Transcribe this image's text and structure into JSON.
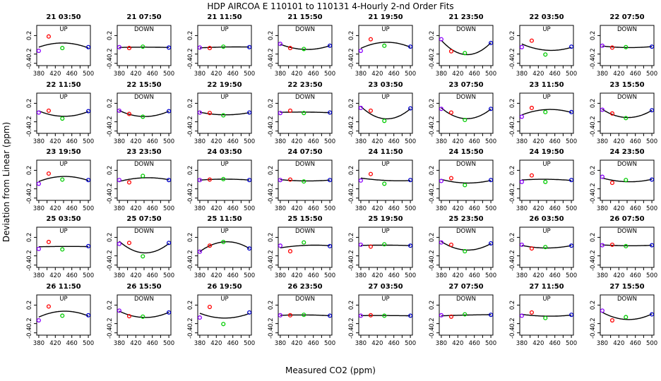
{
  "chart_data": {
    "type": "scatter",
    "title": "HDP   AIRCOA E   110101 to 110131   4-Hourly 2-nd Order Fits",
    "xlabel": "Measured CO2 (ppm)",
    "ylabel": "Deviation from Linear (ppm)",
    "xlim": [
      375,
      505
    ],
    "ylim": [
      -0.45,
      0.42
    ],
    "xticks": [
      380,
      420,
      460,
      500
    ],
    "xticks_minor": [
      400,
      440,
      480
    ],
    "yticks": [
      -0.4,
      -0.2,
      0.2
    ],
    "colors": {
      "s1": "#8b00ff",
      "s2": "#ff0000",
      "s3": "#00cc00",
      "s4": "#0000cc",
      "curve": "#000000"
    },
    "series_x": [
      380,
      404,
      437,
      500
    ],
    "panels": [
      {
        "title": "21 03:50",
        "direction": "UP",
        "y": [
          -0.13,
          0.18,
          -0.07,
          -0.05
        ]
      },
      {
        "title": "21 07:50",
        "direction": "DOWN",
        "y": [
          -0.05,
          -0.07,
          -0.04,
          -0.06
        ]
      },
      {
        "title": "21 11:50",
        "direction": "UP",
        "y": [
          -0.06,
          -0.07,
          -0.04,
          -0.05
        ]
      },
      {
        "title": "21 15:50",
        "direction": "DOWN",
        "y": [
          0.02,
          -0.07,
          -0.09,
          -0.02
        ]
      },
      {
        "title": "21 19:50",
        "direction": "UP",
        "y": [
          -0.13,
          0.12,
          -0.02,
          -0.04
        ]
      },
      {
        "title": "21 23:50",
        "direction": "DOWN",
        "y": [
          0.12,
          -0.14,
          -0.18,
          0.04
        ]
      },
      {
        "title": "22 03:50",
        "direction": "UP",
        "y": [
          -0.05,
          0.09,
          -0.21,
          -0.04
        ]
      },
      {
        "title": "22 07:50",
        "direction": "DOWN",
        "y": [
          -0.02,
          -0.06,
          -0.05,
          -0.04
        ]
      },
      {
        "title": "22 11:50",
        "direction": "UP",
        "y": [
          0.0,
          0.04,
          -0.13,
          0.03
        ]
      },
      {
        "title": "22 15:50",
        "direction": "DOWN",
        "y": [
          0.04,
          -0.03,
          -0.09,
          0.03
        ]
      },
      {
        "title": "22 19:50",
        "direction": "UP",
        "y": [
          0.0,
          -0.01,
          -0.06,
          0.0
        ]
      },
      {
        "title": "22 23:50",
        "direction": "DOWN",
        "y": [
          -0.01,
          0.04,
          -0.01,
          0.0
        ]
      },
      {
        "title": "23 03:50",
        "direction": "UP",
        "y": [
          0.1,
          0.04,
          -0.18,
          0.09
        ]
      },
      {
        "title": "23 07:50",
        "direction": "DOWN",
        "y": [
          0.08,
          0.0,
          -0.16,
          0.08
        ]
      },
      {
        "title": "23 11:50",
        "direction": "UP",
        "y": [
          -0.09,
          0.1,
          0.01,
          0.01
        ]
      },
      {
        "title": "23 15:50",
        "direction": "DOWN",
        "y": [
          0.06,
          -0.02,
          -0.12,
          0.05
        ]
      },
      {
        "title": "23 19:50",
        "direction": "UP",
        "y": [
          -0.09,
          0.13,
          0.0,
          -0.01
        ]
      },
      {
        "title": "23 23:50",
        "direction": "DOWN",
        "y": [
          -0.01,
          -0.06,
          0.08,
          -0.01
        ]
      },
      {
        "title": "24 03:50",
        "direction": "UP",
        "y": [
          -0.01,
          0.0,
          0.01,
          -0.01
        ]
      },
      {
        "title": "24 07:50",
        "direction": "DOWN",
        "y": [
          -0.01,
          0.0,
          -0.04,
          -0.01
        ]
      },
      {
        "title": "24 11:50",
        "direction": "UP",
        "y": [
          -0.02,
          0.12,
          -0.09,
          -0.01
        ]
      },
      {
        "title": "24 15:50",
        "direction": "DOWN",
        "y": [
          -0.03,
          0.03,
          -0.12,
          -0.01
        ]
      },
      {
        "title": "24 19:50",
        "direction": "UP",
        "y": [
          -0.05,
          0.09,
          -0.05,
          -0.01
        ]
      },
      {
        "title": "24 23:50",
        "direction": "DOWN",
        "y": [
          0.06,
          -0.07,
          -0.01,
          0.0
        ]
      },
      {
        "title": "25 03:50",
        "direction": "UP",
        "y": [
          -0.05,
          0.1,
          -0.06,
          0.01
        ]
      },
      {
        "title": "25 07:50",
        "direction": "DOWN",
        "y": [
          0.06,
          0.08,
          -0.21,
          0.08
        ]
      },
      {
        "title": "25 11:50",
        "direction": "UP",
        "y": [
          -0.11,
          0.02,
          0.1,
          -0.04
        ]
      },
      {
        "title": "25 15:50",
        "direction": "DOWN",
        "y": [
          0.02,
          -0.1,
          0.09,
          0.01
        ]
      },
      {
        "title": "25 19:50",
        "direction": "UP",
        "y": [
          0.04,
          0.0,
          0.05,
          0.02
        ]
      },
      {
        "title": "25 23:50",
        "direction": "DOWN",
        "y": [
          0.09,
          0.04,
          -0.1,
          0.07
        ]
      },
      {
        "title": "26 03:50",
        "direction": "UP",
        "y": [
          0.04,
          -0.04,
          -0.01,
          0.02
        ]
      },
      {
        "title": "26 07:50",
        "direction": "DOWN",
        "y": [
          0.03,
          0.04,
          0.01,
          0.03
        ]
      },
      {
        "title": "26 11:50",
        "direction": "UP",
        "y": [
          -0.13,
          0.17,
          -0.03,
          -0.02
        ]
      },
      {
        "title": "26 15:50",
        "direction": "DOWN",
        "y": [
          0.08,
          -0.04,
          -0.05,
          0.04
        ]
      },
      {
        "title": "26 19:50",
        "direction": "UP",
        "y": [
          -0.07,
          0.16,
          -0.21,
          0.04
        ]
      },
      {
        "title": "26 23:50",
        "direction": "DOWN",
        "y": [
          -0.02,
          -0.02,
          -0.01,
          -0.03
        ]
      },
      {
        "title": "27 03:50",
        "direction": "UP",
        "y": [
          -0.03,
          -0.02,
          -0.03,
          -0.03
        ]
      },
      {
        "title": "27 07:50",
        "direction": "DOWN",
        "y": [
          -0.02,
          -0.05,
          0.0,
          -0.01
        ]
      },
      {
        "title": "27 11:50",
        "direction": "UP",
        "y": [
          -0.03,
          0.04,
          -0.08,
          -0.01
        ]
      },
      {
        "title": "27 15:50",
        "direction": "DOWN",
        "y": [
          0.08,
          -0.13,
          -0.06,
          0.0
        ]
      }
    ]
  }
}
